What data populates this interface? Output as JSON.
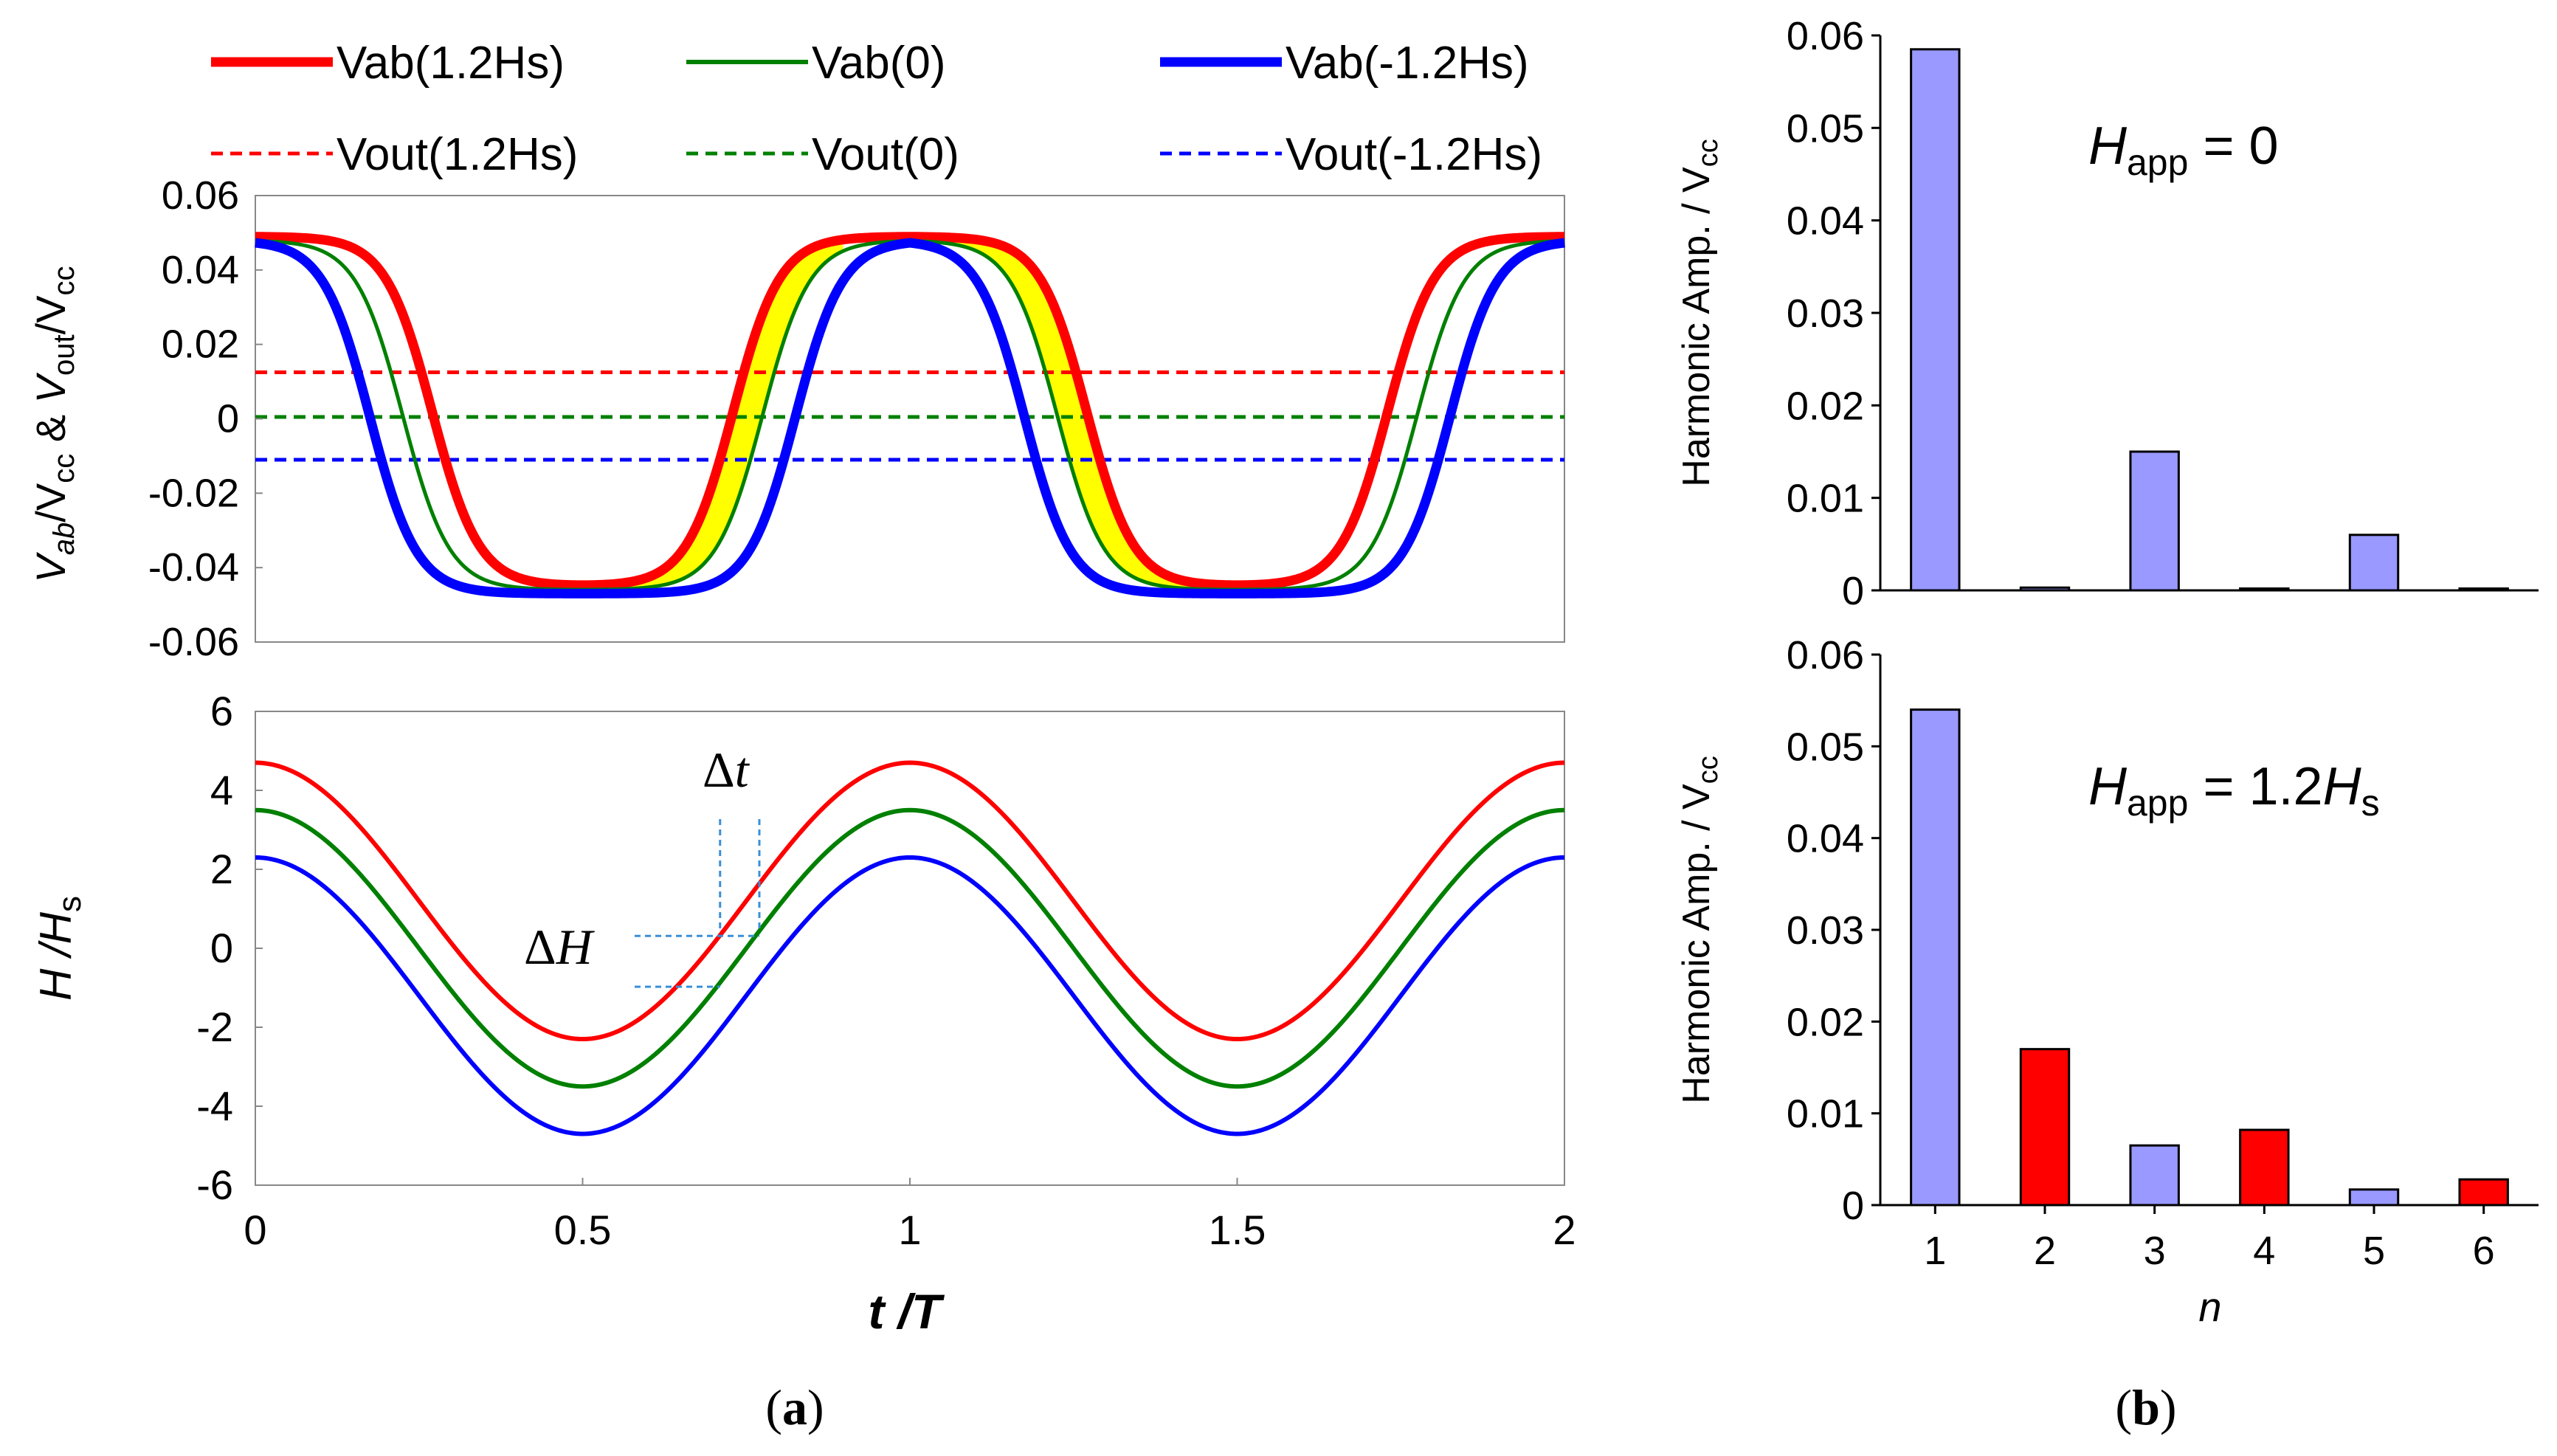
{
  "chart_data": [
    {
      "panel": "a-top",
      "type": "line",
      "ylabel_parts": [
        "V",
        "ab",
        "/V",
        "cc",
        " & ",
        "V",
        "out",
        "/V",
        "cc"
      ],
      "ylim": [
        -0.06,
        0.06
      ],
      "yticks": [
        "0.06",
        "0.04",
        "0.02",
        "0",
        "-0.02",
        "-0.04",
        "-0.06"
      ],
      "xlim": [
        0,
        2
      ],
      "grid": false,
      "legend": "top",
      "series": [
        {
          "name": "Vab(1.2Hs)",
          "style": "solid-thick",
          "color": "#ff0000",
          "high": 0.049,
          "low": -0.045,
          "fall_t": 0.27,
          "rise_t": 0.73
        },
        {
          "name": "Vab(0)",
          "style": "solid-thin",
          "color": "#008000",
          "high": 0.048,
          "low": -0.046,
          "fall_t": 0.225,
          "rise_t": 0.775
        },
        {
          "name": "Vab(-1.2Hs)",
          "style": "solid-thick",
          "color": "#0000ff",
          "high": 0.048,
          "low": -0.047,
          "fall_t": 0.175,
          "rise_t": 0.825
        },
        {
          "name": "Vout(1.2Hs)",
          "style": "dashed",
          "color": "#ff0000",
          "value": 0.0125
        },
        {
          "name": "Vout(0)",
          "style": "dashed",
          "color": "#008000",
          "value": 0.0005
        },
        {
          "name": "Vout(-1.2Hs)",
          "style": "dashed",
          "color": "#0000ff",
          "value": -0.011
        }
      ]
    },
    {
      "panel": "a-bottom",
      "type": "line",
      "xlabel": "t /T",
      "ylabel": "H /Hs",
      "ylim": [
        -6,
        6
      ],
      "yticks": [
        "6",
        "4",
        "2",
        "0",
        "-2",
        "-4",
        "-6"
      ],
      "xlim": [
        0,
        2
      ],
      "xticks": [
        "0",
        "0.5",
        "1",
        "1.5",
        "2"
      ],
      "amplitude": 3.5,
      "series": [
        {
          "color": "#ff0000",
          "offset": 1.2
        },
        {
          "color": "#008000",
          "offset": 0
        },
        {
          "color": "#0000ff",
          "offset": -1.2
        }
      ],
      "annotations": [
        "Δt",
        "ΔH"
      ]
    },
    {
      "panel": "b-top",
      "type": "bar",
      "ylabel": "Harmonic Amp. / Vcc",
      "annotation": "Happ = 0",
      "ylim": [
        0,
        0.06
      ],
      "yticks": [
        "0.06",
        "0.05",
        "0.04",
        "0.03",
        "0.02",
        "0.01",
        "0"
      ],
      "categories": [
        "1",
        "2",
        "3",
        "4",
        "5",
        "6"
      ],
      "values": [
        0.0585,
        0.0003,
        0.015,
        0.0002,
        0.006,
        0.0002
      ],
      "colors": [
        "#9999ff",
        "#9999ff",
        "#9999ff",
        "#9999ff",
        "#9999ff",
        "#9999ff"
      ]
    },
    {
      "panel": "b-bottom",
      "type": "bar",
      "ylabel": "Harmonic Amp. / Vcc",
      "annotation": "Happ = 1.2Hs",
      "xlabel": "n",
      "ylim": [
        0,
        0.06
      ],
      "yticks": [
        "0.06",
        "0.05",
        "0.04",
        "0.03",
        "0.02",
        "0.01",
        "0"
      ],
      "categories": [
        "1",
        "2",
        "3",
        "4",
        "5",
        "6"
      ],
      "values": [
        0.054,
        0.017,
        0.0065,
        0.0082,
        0.0017,
        0.0028
      ],
      "colors": [
        "#9999ff",
        "#ff0000",
        "#9999ff",
        "#ff0000",
        "#9999ff",
        "#ff0000"
      ]
    }
  ],
  "captions": {
    "a": "a",
    "b": "b"
  }
}
